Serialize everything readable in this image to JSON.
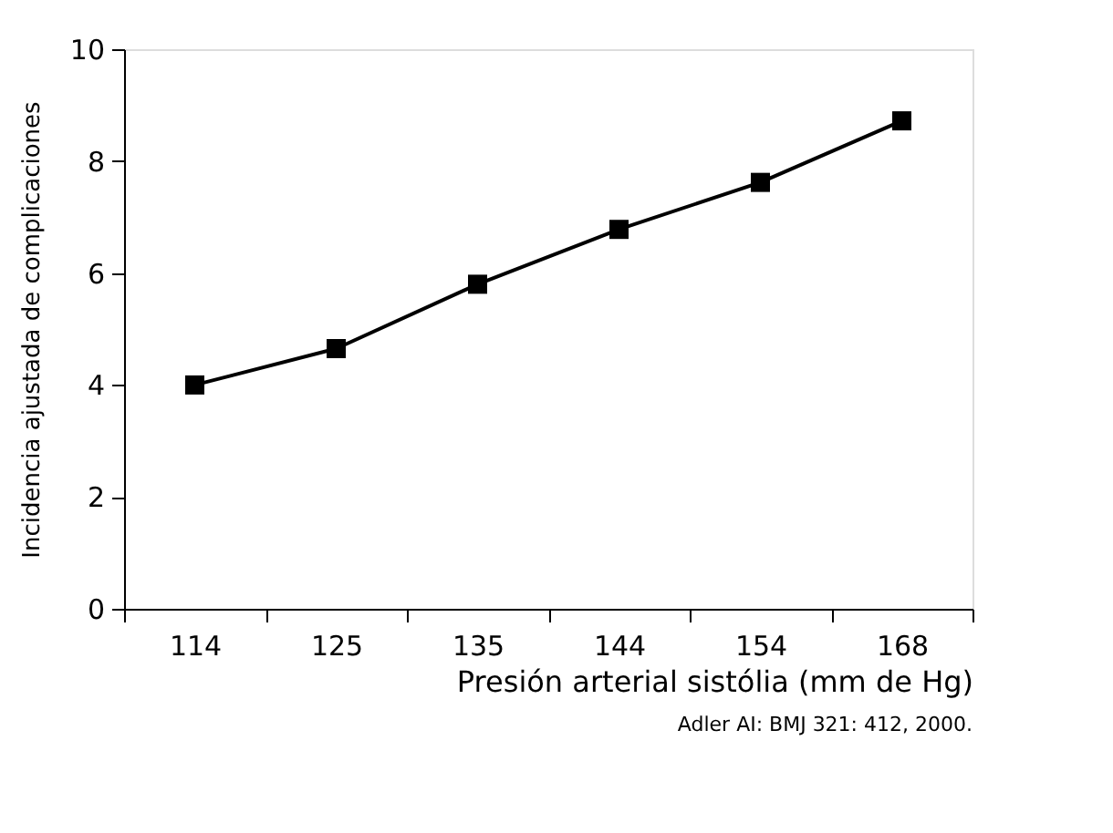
{
  "chart_data": {
    "type": "line",
    "categories": [
      "114",
      "125",
      "135",
      "144",
      "154",
      "168"
    ],
    "series": [
      {
        "color": "#000000",
        "values": [
          4.0,
          4.65,
          5.8,
          6.78,
          7.62,
          8.72
        ]
      }
    ],
    "xlabel": "Presión arterial sistólia (mm de Hg)",
    "ylabel": "Incidencia ajustada de complicaciones",
    "ylim": [
      0,
      10
    ],
    "yticks": [
      0,
      2,
      4,
      6,
      8,
      10
    ],
    "grid": false,
    "marker": "square",
    "line_style": "solid",
    "annotations": [
      "Adler AI: BMJ 321: 412, 2000."
    ]
  }
}
